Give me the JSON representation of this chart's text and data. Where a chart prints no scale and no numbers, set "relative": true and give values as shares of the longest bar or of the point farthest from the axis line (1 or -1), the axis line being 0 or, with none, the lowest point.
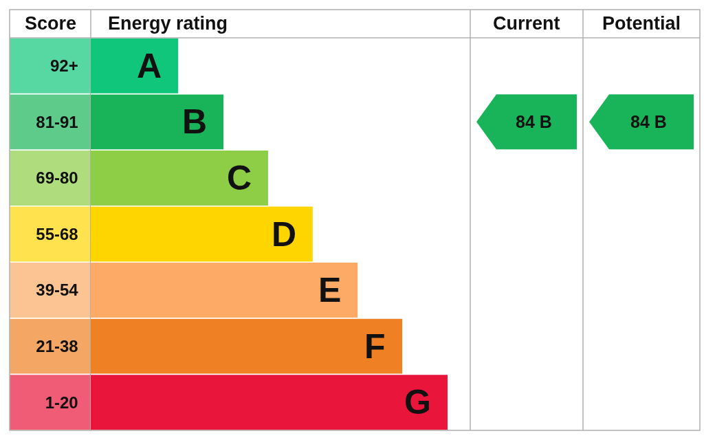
{
  "chart_data": {
    "type": "bar",
    "orientation": "horizontal",
    "relative": true,
    "ylabel": "Score",
    "xlabel": "Energy rating",
    "categories": [
      "92+",
      "81-91",
      "69-80",
      "55-68",
      "39-54",
      "21-38",
      "1-20"
    ],
    "values": [
      0.245,
      0.372,
      0.497,
      0.622,
      0.748,
      0.873,
      1
    ],
    "colors": [
      "#0fc67a",
      "#19b459",
      "#8dce46",
      "#ffd500",
      "#fcaa65",
      "#ef8023",
      "#e9153b"
    ],
    "annotations": [
      "Current",
      "Potential",
      {
        "text": "A",
        "x": 0.245,
        "y": "92+"
      },
      {
        "text": "B",
        "x": 0.372,
        "y": "81-91"
      },
      {
        "text": "C",
        "x": 0.497,
        "y": "69-80"
      },
      {
        "text": "D",
        "x": 0.622,
        "y": "55-68"
      },
      {
        "text": "E",
        "x": 0.748,
        "y": "39-54"
      },
      {
        "text": "F",
        "x": 0.873,
        "y": "21-38"
      },
      {
        "text": "G",
        "x": 1,
        "y": "1-20"
      },
      "84 B",
      "84 B"
    ],
    "grid": false,
    "legend": false
  }
}
